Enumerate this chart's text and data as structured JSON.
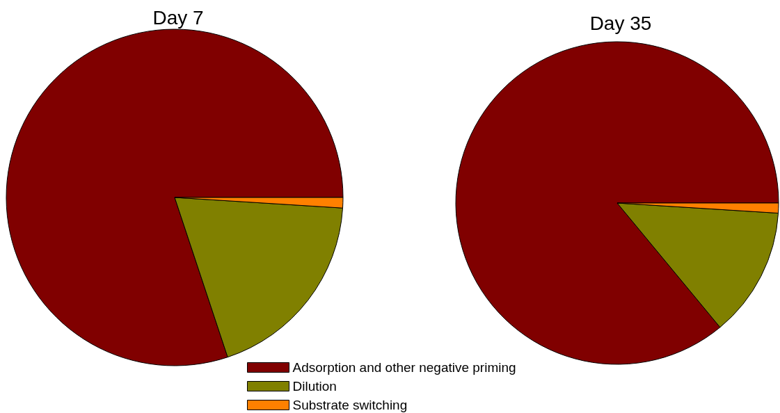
{
  "chart_data": [
    {
      "type": "pie",
      "title": "Day 7",
      "categories": [
        "Adsorption and other negative priming",
        "Dilution",
        "Substrate switching"
      ],
      "values": [
        80.1,
        18.9,
        1.0
      ],
      "colors": [
        "#800000",
        "#808000",
        "#ff8000"
      ],
      "legend": "bottom"
    },
    {
      "type": "pie",
      "title": "Day 35",
      "categories": [
        null,
        null,
        null
      ],
      "values": [
        86.0,
        13.0,
        1.0
      ],
      "colors": [
        "#800000",
        "#808000",
        "#ff8000"
      ]
    }
  ]
}
